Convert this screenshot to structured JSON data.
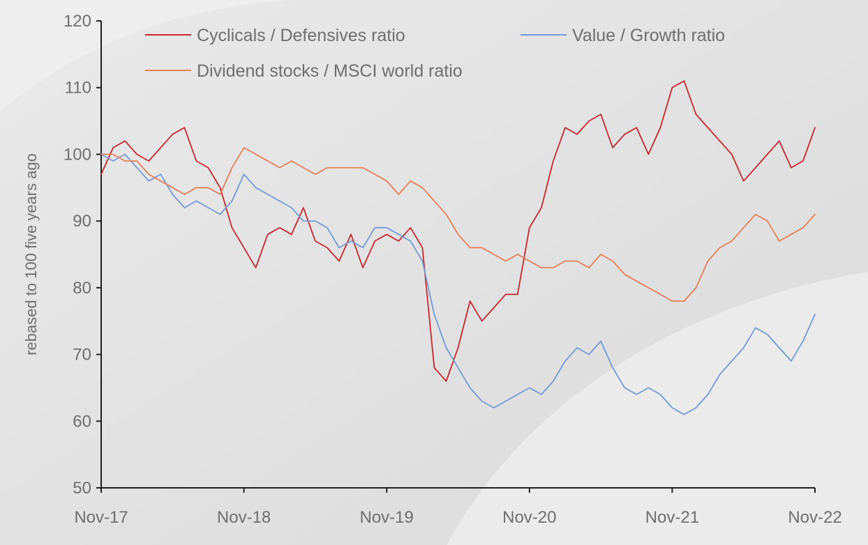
{
  "chart_data": {
    "type": "line",
    "title": "",
    "xlabel": "",
    "ylabel": "rebased to 100 five years ago",
    "ylim": [
      50,
      120
    ],
    "yticks": [
      50,
      60,
      70,
      80,
      90,
      100,
      110,
      120
    ],
    "xlim": [
      "2017-11",
      "2022-11"
    ],
    "x_tick_labels": [
      "Nov-17",
      "Nov-18",
      "Nov-19",
      "Nov-20",
      "Nov-21",
      "Nov-22"
    ],
    "grid": false,
    "legend_position": "top",
    "x": [
      "2017-11",
      "2017-12",
      "2018-01",
      "2018-02",
      "2018-03",
      "2018-04",
      "2018-05",
      "2018-06",
      "2018-07",
      "2018-08",
      "2018-09",
      "2018-10",
      "2018-11",
      "2018-12",
      "2019-01",
      "2019-02",
      "2019-03",
      "2019-04",
      "2019-05",
      "2019-06",
      "2019-07",
      "2019-08",
      "2019-09",
      "2019-10",
      "2019-11",
      "2019-12",
      "2020-01",
      "2020-02",
      "2020-03",
      "2020-04",
      "2020-05",
      "2020-06",
      "2020-07",
      "2020-08",
      "2020-09",
      "2020-10",
      "2020-11",
      "2020-12",
      "2021-01",
      "2021-02",
      "2021-03",
      "2021-04",
      "2021-05",
      "2021-06",
      "2021-07",
      "2021-08",
      "2021-09",
      "2021-10",
      "2021-11",
      "2021-12",
      "2022-01",
      "2022-02",
      "2022-03",
      "2022-04",
      "2022-05",
      "2022-06",
      "2022-07",
      "2022-08",
      "2022-09",
      "2022-10",
      "2022-11"
    ],
    "series": [
      {
        "name": "Cyclicals / Defensives ratio",
        "color": "#c8262b",
        "values": [
          97,
          101,
          102,
          100,
          99,
          101,
          103,
          104,
          99,
          98,
          95,
          89,
          86,
          83,
          88,
          89,
          88,
          92,
          87,
          86,
          84,
          88,
          83,
          87,
          88,
          87,
          89,
          86,
          68,
          66,
          71,
          78,
          75,
          77,
          79,
          79,
          89,
          92,
          99,
          104,
          103,
          105,
          106,
          101,
          103,
          104,
          100,
          104,
          110,
          111,
          106,
          104,
          102,
          100,
          96,
          98,
          100,
          102,
          98,
          99,
          104
        ]
      },
      {
        "name": "Value / Growth ratio",
        "color": "#6f9ad6",
        "values": [
          100,
          99,
          100,
          98,
          96,
          97,
          94,
          92,
          93,
          92,
          91,
          93,
          97,
          95,
          94,
          93,
          92,
          90,
          90,
          89,
          86,
          87,
          86,
          89,
          89,
          88,
          87,
          84,
          76,
          71,
          68,
          65,
          63,
          62,
          63,
          64,
          65,
          64,
          66,
          69,
          71,
          70,
          72,
          68,
          65,
          64,
          65,
          64,
          62,
          61,
          62,
          64,
          67,
          69,
          71,
          74,
          73,
          71,
          69,
          72,
          76
        ]
      },
      {
        "name": "Dividend stocks / MSCI world ratio",
        "color": "#e57d55",
        "values": [
          100,
          100,
          99,
          99,
          97,
          96,
          95,
          94,
          95,
          95,
          94,
          98,
          101,
          100,
          99,
          98,
          99,
          98,
          97,
          98,
          98,
          98,
          98,
          97,
          96,
          94,
          96,
          95,
          93,
          91,
          88,
          86,
          86,
          85,
          84,
          85,
          84,
          83,
          83,
          84,
          84,
          83,
          85,
          84,
          82,
          81,
          80,
          79,
          78,
          78,
          80,
          84,
          86,
          87,
          89,
          91,
          90,
          87,
          88,
          89,
          91
        ]
      }
    ]
  }
}
